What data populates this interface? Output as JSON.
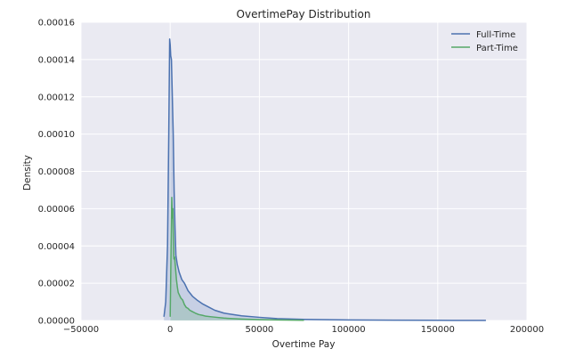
{
  "chart_data": {
    "type": "area",
    "title": "OvertimePay Distribution",
    "xlabel": "Overtime Pay",
    "ylabel": "Density",
    "xlim": [
      -50000,
      200000
    ],
    "ylim": [
      0,
      0.00016
    ],
    "x_ticks": [
      -50000,
      0,
      50000,
      100000,
      150000,
      200000
    ],
    "x_tick_labels": [
      "−50000",
      "0",
      "50000",
      "100000",
      "150000",
      "200000"
    ],
    "y_ticks": [
      0,
      2e-05,
      4e-05,
      6e-05,
      8e-05,
      0.0001,
      0.00012,
      0.00014,
      0.00016
    ],
    "y_tick_labels": [
      "0.00000",
      "0.00002",
      "0.00004",
      "0.00006",
      "0.00008",
      "0.00010",
      "0.00012",
      "0.00014",
      "0.00016"
    ],
    "grid": true,
    "legend_position": "top-right",
    "series": [
      {
        "name": "Full-Time",
        "color": "#4c72b0",
        "x": [
          -3500,
          -2500,
          -1500,
          -800,
          -300,
          0,
          300,
          700,
          1200,
          1700,
          2200,
          2700,
          3200,
          4000,
          5000,
          6500,
          8000,
          10000,
          12500,
          15000,
          18000,
          21000,
          25000,
          30000,
          35000,
          40000,
          50000,
          60000,
          75000,
          100000,
          125000,
          150000,
          177000
        ],
        "y": [
          2e-06,
          1e-05,
          4e-05,
          0.0001,
          0.000151,
          0.000148,
          0.000142,
          0.00014,
          0.00012,
          0.0001,
          7e-05,
          5e-05,
          3.5e-05,
          3e-05,
          2.6e-05,
          2.2e-05,
          2e-05,
          1.6e-05,
          1.3e-05,
          1.1e-05,
          9e-06,
          7.5e-06,
          5.5e-06,
          4e-06,
          3.2e-06,
          2.5e-06,
          1.7e-06,
          1e-06,
          6e-07,
          3e-07,
          2e-07,
          1e-07,
          5e-08
        ]
      },
      {
        "name": "Part-Time",
        "color": "#55a868",
        "x": [
          0,
          500,
          900,
          1200,
          1500,
          1800,
          2100,
          2500,
          3000,
          3500,
          4000,
          4500,
          5000,
          6000,
          7000,
          8000,
          9000,
          10000,
          11000,
          12000,
          14000,
          16000,
          18000,
          20000,
          23000,
          26000,
          30000,
          35000,
          40000,
          50000,
          60000,
          75000
        ],
        "y": [
          2e-06,
          4e-05,
          6.6e-05,
          5.5e-05,
          6e-05,
          4.5e-05,
          3.3e-05,
          3.4e-05,
          2.8e-05,
          2.2e-05,
          1.8e-05,
          1.5e-05,
          1.4e-05,
          1.2e-05,
          1.1e-05,
          8.5e-06,
          7e-06,
          6.5e-06,
          5.5e-06,
          5e-06,
          4e-06,
          3.2e-06,
          2.8e-06,
          2.3e-06,
          2e-06,
          1.7e-06,
          1.3e-06,
          1e-06,
          8e-07,
          5e-07,
          3e-07,
          1e-07
        ]
      }
    ]
  }
}
